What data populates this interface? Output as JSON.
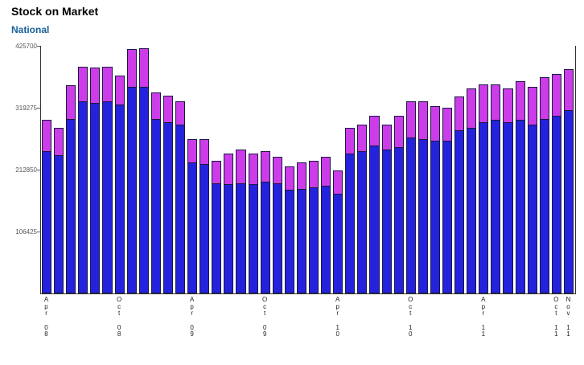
{
  "header": {
    "title": "Stock on Market",
    "subtitle": "National"
  },
  "colors": {
    "bar_blue": "#2422dd",
    "bar_magenta": "#cc3ce8",
    "bar_outline": "#191940",
    "subtitle_blue": "#17629c",
    "axis": "#333333"
  },
  "chart_data": {
    "type": "bar",
    "stacked": true,
    "title": "Stock on Market",
    "subtitle": "National",
    "xlabel": "",
    "ylabel": "",
    "ylim": [
      0,
      425700
    ],
    "y_ticks": [
      425700,
      319275,
      212850,
      106425
    ],
    "y_tick_labels": [
      "425700",
      "319275",
      "212850",
      "106425"
    ],
    "grid": false,
    "legend": "none",
    "bar_count": 44,
    "x_ticks": [
      {
        "bar_index": 0,
        "month": "Apr",
        "year": "08"
      },
      {
        "bar_index": 6,
        "month": "Oct",
        "year": "08"
      },
      {
        "bar_index": 12,
        "month": "Apr",
        "year": "09"
      },
      {
        "bar_index": 18,
        "month": "Oct",
        "year": "09"
      },
      {
        "bar_index": 24,
        "month": "Apr",
        "year": "10"
      },
      {
        "bar_index": 30,
        "month": "Oct",
        "year": "10"
      },
      {
        "bar_index": 36,
        "month": "Apr",
        "year": "11"
      },
      {
        "bar_index": 42,
        "month": "Oct",
        "year": "11"
      },
      {
        "bar_index": 43,
        "month": "Nov",
        "year": "11"
      }
    ],
    "series": [
      {
        "name": "blue-segment",
        "color": "#2422dd",
        "values": [
          245000,
          238000,
          300000,
          330000,
          328000,
          330000,
          325000,
          355000,
          355000,
          300000,
          295000,
          290000,
          225000,
          222000,
          190000,
          188000,
          190000,
          188000,
          192000,
          190000,
          178000,
          180000,
          182000,
          185000,
          172000,
          240000,
          245000,
          255000,
          248000,
          252000,
          268000,
          265000,
          262000,
          262000,
          280000,
          285000,
          295000,
          298000,
          295000,
          298000,
          290000,
          300000,
          305000,
          315000
        ]
      },
      {
        "name": "magenta-segment",
        "color": "#cc3ce8",
        "values": [
          53000,
          47000,
          58000,
          60000,
          60000,
          60000,
          50000,
          65000,
          67000,
          45000,
          45000,
          40000,
          40000,
          43000,
          38000,
          52000,
          58000,
          52000,
          53000,
          45000,
          40000,
          45000,
          46000,
          50000,
          40000,
          45000,
          45000,
          50000,
          42000,
          53000,
          62000,
          65000,
          60000,
          58000,
          58000,
          67000,
          65000,
          62000,
          57000,
          67000,
          65000,
          72000,
          73000,
          70000
        ]
      }
    ]
  }
}
